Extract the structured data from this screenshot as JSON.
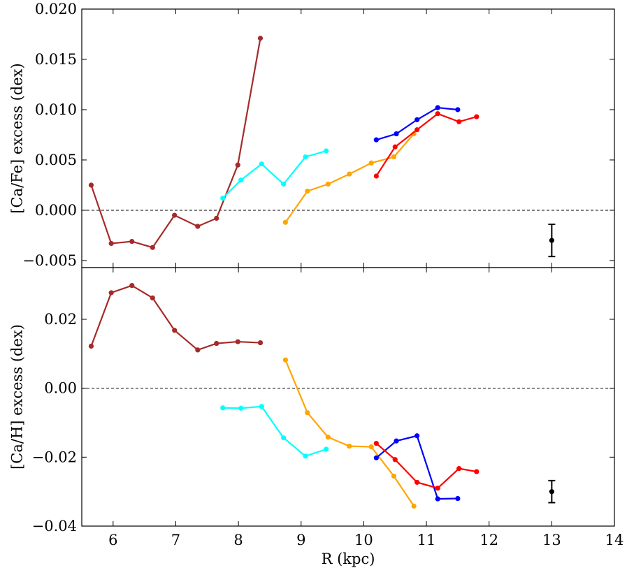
{
  "chart_data": [
    {
      "type": "line",
      "ylabel": "[Ca/Fe] excess (dex)",
      "xlabel": "",
      "xlim": [
        5.5,
        14
      ],
      "ylim": [
        -0.0057,
        0.02
      ],
      "xticks": [
        6,
        7,
        8,
        9,
        10,
        11,
        12,
        13,
        14
      ],
      "yticks": [
        -0.005,
        0.0,
        0.005,
        0.01,
        0.015,
        0.02
      ],
      "ytick_labels": [
        "−0.005",
        "0.000",
        "0.005",
        "0.010",
        "0.015",
        "0.020"
      ],
      "reference_line": 0.0,
      "series": [
        {
          "color": "#a52a2a",
          "x": [
            5.65,
            5.97,
            6.3,
            6.63,
            6.98,
            7.35,
            7.65,
            7.99,
            8.35
          ],
          "y": [
            0.0025,
            -0.0033,
            -0.0031,
            -0.0037,
            -0.0005,
            -0.0016,
            -0.0008,
            0.0045,
            0.0171
          ]
        },
        {
          "color": "#00ffff",
          "x": [
            7.75,
            8.04,
            8.37,
            8.72,
            9.07,
            9.4
          ],
          "y": [
            0.0012,
            0.003,
            0.0046,
            0.0026,
            0.0053,
            0.0059
          ]
        },
        {
          "color": "#ffa500",
          "x": [
            8.75,
            9.1,
            9.43,
            9.77,
            10.12,
            10.48,
            10.8
          ],
          "y": [
            -0.0012,
            0.0019,
            0.0026,
            0.0036,
            0.0047,
            0.0053,
            0.0076
          ]
        },
        {
          "color": "#0000ff",
          "x": [
            10.2,
            10.52,
            10.85,
            11.18,
            11.5
          ],
          "y": [
            0.007,
            0.0076,
            0.009,
            0.0102,
            0.01
          ]
        },
        {
          "color": "#ff0000",
          "x": [
            10.2,
            10.5,
            10.85,
            11.18,
            11.52,
            11.8
          ],
          "y": [
            0.0034,
            0.0063,
            0.008,
            0.0096,
            0.0088,
            0.0093
          ]
        }
      ],
      "errorbar": {
        "x": 13.0,
        "y": -0.003,
        "err": 0.0016
      }
    },
    {
      "type": "line",
      "ylabel": "[Ca/H] excess (dex)",
      "xlabel": "R (kpc)",
      "xlim": [
        5.5,
        14
      ],
      "ylim": [
        -0.04,
        0.035
      ],
      "xticks": [
        6,
        7,
        8,
        9,
        10,
        11,
        12,
        13,
        14
      ],
      "yticks": [
        -0.04,
        -0.02,
        0.0,
        0.02
      ],
      "ytick_labels": [
        "−0.04",
        "−0.02",
        "0.00",
        "0.02"
      ],
      "reference_line": 0.0,
      "series": [
        {
          "color": "#a52a2a",
          "x": [
            5.65,
            5.97,
            6.3,
            6.63,
            6.98,
            7.35,
            7.65,
            7.99,
            8.35
          ],
          "y": [
            0.0122,
            0.0277,
            0.0298,
            0.0262,
            0.0168,
            0.0111,
            0.013,
            0.0135,
            0.0132
          ]
        },
        {
          "color": "#00ffff",
          "x": [
            7.75,
            8.04,
            8.37,
            8.72,
            9.07,
            9.4
          ],
          "y": [
            -0.0057,
            -0.0058,
            -0.0053,
            -0.0144,
            -0.0197,
            -0.0177
          ]
        },
        {
          "color": "#ffa500",
          "x": [
            8.75,
            9.1,
            9.43,
            9.77,
            10.12,
            10.48,
            10.8
          ],
          "y": [
            0.0082,
            -0.0071,
            -0.0142,
            -0.0168,
            -0.017,
            -0.0255,
            -0.0342
          ]
        },
        {
          "color": "#0000ff",
          "x": [
            10.2,
            10.52,
            10.85,
            11.18,
            11.5
          ],
          "y": [
            -0.0202,
            -0.0153,
            -0.0138,
            -0.0321,
            -0.032
          ]
        },
        {
          "color": "#ff0000",
          "x": [
            10.2,
            10.5,
            10.85,
            11.18,
            11.52,
            11.8
          ],
          "y": [
            -0.016,
            -0.0207,
            -0.0273,
            -0.029,
            -0.0233,
            -0.0242
          ]
        }
      ],
      "errorbar": {
        "x": 13.0,
        "y": -0.03,
        "err": 0.0032
      }
    }
  ]
}
